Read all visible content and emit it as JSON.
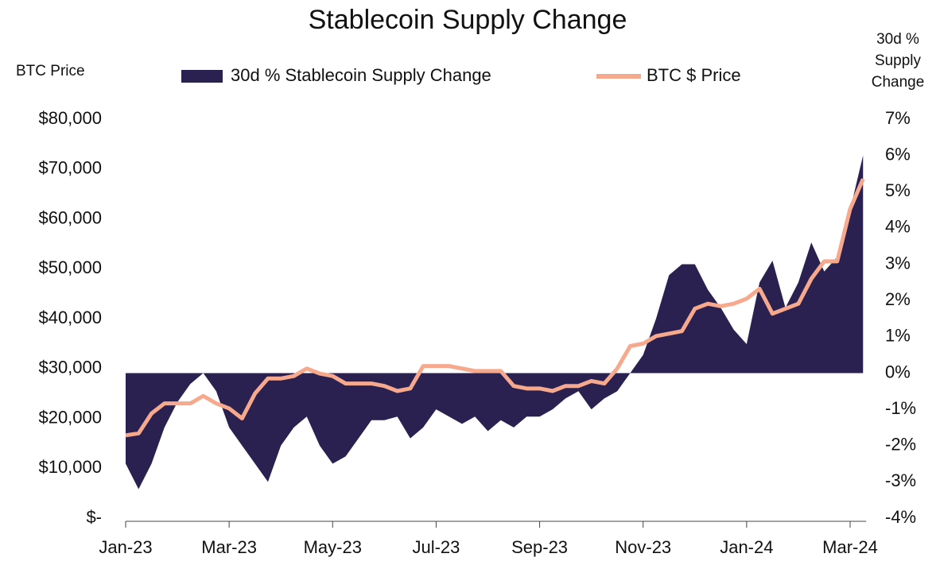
{
  "chart_data": {
    "type": "area-line",
    "title": "Stablecoin Supply Change",
    "y_label": "BTC Price",
    "y2_label": "30d % Supply Change",
    "categories": [
      "Jan-23",
      null,
      null,
      null,
      null,
      null,
      null,
      null,
      "Mar-23",
      null,
      null,
      null,
      null,
      null,
      null,
      null,
      "May-23",
      null,
      null,
      null,
      null,
      null,
      null,
      null,
      "Jul-23",
      null,
      null,
      null,
      null,
      null,
      null,
      null,
      "Sep-23",
      null,
      null,
      null,
      null,
      null,
      null,
      null,
      "Nov-23",
      null,
      null,
      null,
      null,
      null,
      null,
      null,
      "Jan-24",
      null,
      null,
      null,
      null,
      null,
      null,
      null,
      "Mar-24",
      null
    ],
    "series": [
      {
        "name": "30d % Stablecoin Supply Change",
        "color": "#2b2150",
        "axis": "y2",
        "kind": "area",
        "values": [
          -2.5,
          -3.2,
          -2.5,
          -1.5,
          -0.8,
          -0.3,
          0,
          -0.5,
          -1.5,
          -2,
          -2.5,
          -3,
          -2,
          -1.5,
          -1.2,
          -2,
          -2.5,
          -2.3,
          -1.8,
          -1.3,
          -1.3,
          -1.2,
          -1.8,
          -1.5,
          -1,
          -1.2,
          -1.4,
          -1.2,
          -1.6,
          -1.3,
          -1.5,
          -1.2,
          -1.2,
          -1,
          -0.7,
          -0.5,
          -1,
          -0.7,
          -0.5,
          0,
          0.5,
          1.5,
          2.7,
          3,
          3,
          2.3,
          1.8,
          1.2,
          0.8,
          2.5,
          3.1,
          1.8,
          2.5,
          3.6,
          2.8,
          3.2,
          4.5,
          6
        ]
      },
      {
        "name": "BTC $ Price",
        "color": "#f7a98d",
        "axis": "y",
        "kind": "line",
        "values": [
          16600,
          17000,
          21000,
          23000,
          23000,
          23000,
          24500,
          23000,
          22000,
          20000,
          25000,
          28000,
          28000,
          28500,
          30000,
          29000,
          28500,
          27000,
          27000,
          27000,
          26500,
          25500,
          26000,
          30500,
          30500,
          30500,
          30000,
          29500,
          29500,
          29500,
          26500,
          26000,
          26000,
          25500,
          26500,
          26500,
          27500,
          27000,
          30000,
          34500,
          35000,
          36500,
          37000,
          37500,
          42000,
          43000,
          42500,
          43000,
          44000,
          46000,
          41000,
          42000,
          43000,
          48000,
          51500,
          51500,
          62000,
          68000
        ]
      }
    ],
    "ylim": [
      0,
      80000
    ],
    "yticks": [
      {
        "value": 0,
        "label": "$-"
      },
      {
        "value": 10000,
        "label": "$10,000"
      },
      {
        "value": 20000,
        "label": "$20,000"
      },
      {
        "value": 30000,
        "label": "$30,000"
      },
      {
        "value": 40000,
        "label": "$40,000"
      },
      {
        "value": 50000,
        "label": "$50,000"
      },
      {
        "value": 60000,
        "label": "$60,000"
      },
      {
        "value": 70000,
        "label": "$70,000"
      },
      {
        "value": 80000,
        "label": "$80,000"
      }
    ],
    "y2lim": [
      -4,
      7
    ],
    "y2ticks": [
      {
        "value": -4,
        "label": "-4%"
      },
      {
        "value": -3,
        "label": "-3%"
      },
      {
        "value": -2,
        "label": "-2%"
      },
      {
        "value": -1,
        "label": "-1%"
      },
      {
        "value": 0,
        "label": "0%"
      },
      {
        "value": 1,
        "label": "1%"
      },
      {
        "value": 2,
        "label": "2%"
      },
      {
        "value": 3,
        "label": "3%"
      },
      {
        "value": 4,
        "label": "4%"
      },
      {
        "value": 5,
        "label": "5%"
      },
      {
        "value": 6,
        "label": "6%"
      },
      {
        "value": 7,
        "label": "7%"
      }
    ]
  }
}
